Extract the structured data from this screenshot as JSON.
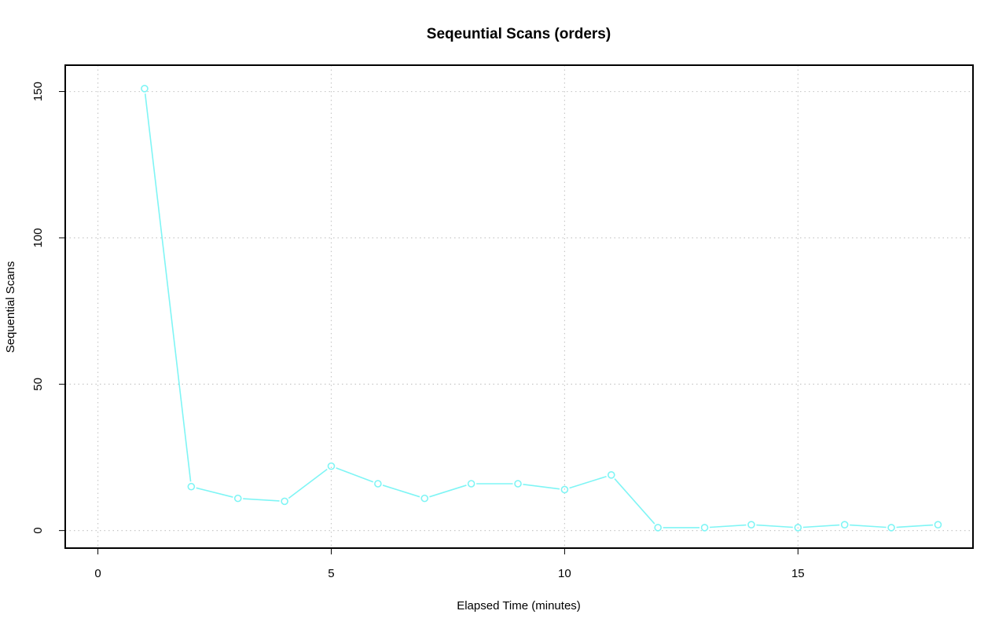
{
  "chart_data": {
    "type": "line",
    "title": "Seqeuntial Scans (orders)",
    "xlabel": "Elapsed Time (minutes)",
    "ylabel": "Sequential Scans",
    "xlim": [
      -0.7,
      18.75
    ],
    "ylim": [
      -6,
      159
    ],
    "x_ticks": [
      0,
      5,
      10,
      15
    ],
    "y_ticks": [
      0,
      50,
      100,
      150
    ],
    "grid": true,
    "series": [
      {
        "color": "#7ff5f5",
        "marker": "open-circle",
        "points": [
          {
            "x": 1,
            "y": 151
          },
          {
            "x": 2,
            "y": 15
          },
          {
            "x": 3,
            "y": 11
          },
          {
            "x": 4,
            "y": 10
          },
          {
            "x": 5,
            "y": 22
          },
          {
            "x": 6,
            "y": 16
          },
          {
            "x": 7,
            "y": 11
          },
          {
            "x": 8,
            "y": 16
          },
          {
            "x": 9,
            "y": 16
          },
          {
            "x": 10,
            "y": 14
          },
          {
            "x": 11,
            "y": 19
          },
          {
            "x": 12,
            "y": 1
          },
          {
            "x": 13,
            "y": 1
          },
          {
            "x": 14,
            "y": 2
          },
          {
            "x": 15,
            "y": 1
          },
          {
            "x": 16,
            "y": 2
          },
          {
            "x": 17,
            "y": 1
          },
          {
            "x": 18,
            "y": 2
          }
        ]
      }
    ]
  }
}
